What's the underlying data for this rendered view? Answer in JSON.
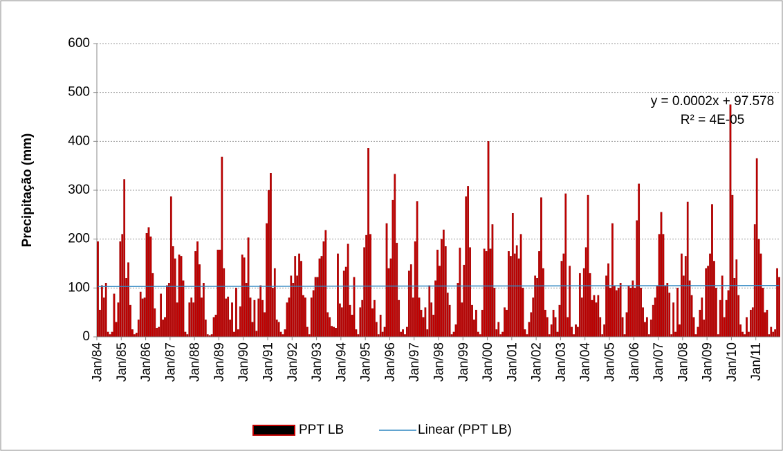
{
  "chart_data": {
    "type": "bar",
    "y_label": "Precipitação (mm)",
    "ylim": [
      0,
      600
    ],
    "yticks": [
      0,
      100,
      200,
      300,
      400,
      500,
      600
    ],
    "grid": true,
    "categories": [
      "Jan/84",
      null,
      null,
      null,
      null,
      null,
      null,
      null,
      null,
      null,
      null,
      null,
      "Jan/85",
      null,
      null,
      null,
      null,
      null,
      null,
      null,
      null,
      null,
      null,
      null,
      "Jan/86",
      null,
      null,
      null,
      null,
      null,
      null,
      null,
      null,
      null,
      null,
      null,
      "Jan/87",
      null,
      null,
      null,
      null,
      null,
      null,
      null,
      null,
      null,
      null,
      null,
      "Jan/88",
      null,
      null,
      null,
      null,
      null,
      null,
      null,
      null,
      null,
      null,
      null,
      "Jan/89",
      null,
      null,
      null,
      null,
      null,
      null,
      null,
      null,
      null,
      null,
      null,
      "Jan/90",
      null,
      null,
      null,
      null,
      null,
      null,
      null,
      null,
      null,
      null,
      null,
      "Jan/91",
      null,
      null,
      null,
      null,
      null,
      null,
      null,
      null,
      null,
      null,
      null,
      "Jan/92",
      null,
      null,
      null,
      null,
      null,
      null,
      null,
      null,
      null,
      null,
      null,
      "Jan/93",
      null,
      null,
      null,
      null,
      null,
      null,
      null,
      null,
      null,
      null,
      null,
      "Jan/94",
      null,
      null,
      null,
      null,
      null,
      null,
      null,
      null,
      null,
      null,
      null,
      "Jan/95",
      null,
      null,
      null,
      null,
      null,
      null,
      null,
      null,
      null,
      null,
      null,
      "Jan/96",
      null,
      null,
      null,
      null,
      null,
      null,
      null,
      null,
      null,
      null,
      null,
      "Jan/97",
      null,
      null,
      null,
      null,
      null,
      null,
      null,
      null,
      null,
      null,
      null,
      "Jan/98",
      null,
      null,
      null,
      null,
      null,
      null,
      null,
      null,
      null,
      null,
      null,
      "Jan/99",
      null,
      null,
      null,
      null,
      null,
      null,
      null,
      null,
      null,
      null,
      null,
      "Jan/00",
      null,
      null,
      null,
      null,
      null,
      null,
      null,
      null,
      null,
      null,
      null,
      "Jan/01",
      null,
      null,
      null,
      null,
      null,
      null,
      null,
      null,
      null,
      null,
      null,
      "Jan/02",
      null,
      null,
      null,
      null,
      null,
      null,
      null,
      null,
      null,
      null,
      null,
      "Jan/03",
      null,
      null,
      null,
      null,
      null,
      null,
      null,
      null,
      null,
      null,
      null,
      "Jan/04",
      null,
      null,
      null,
      null,
      null,
      null,
      null,
      null,
      null,
      null,
      null,
      "Jan/05",
      null,
      null,
      null,
      null,
      null,
      null,
      null,
      null,
      null,
      null,
      null,
      "Jan/06",
      null,
      null,
      null,
      null,
      null,
      null,
      null,
      null,
      null,
      null,
      null,
      "Jan/07",
      null,
      null,
      null,
      null,
      null,
      null,
      null,
      null,
      null,
      null,
      null,
      "Jan/08",
      null,
      null,
      null,
      null,
      null,
      null,
      null,
      null,
      null,
      null,
      null,
      "Jan/09",
      null,
      null,
      null,
      null,
      null,
      null,
      null,
      null,
      null,
      null,
      null,
      "Jan/10",
      null,
      null,
      null,
      null,
      null,
      null,
      null,
      null,
      null,
      null,
      null,
      "Jan/11",
      null,
      null,
      null,
      null,
      null,
      null,
      null,
      null,
      null,
      null,
      null
    ],
    "series": [
      {
        "name": "PPT LB",
        "color": "#c00000",
        "values": [
          195,
          55,
          105,
          80,
          110,
          10,
          5,
          10,
          88,
          30,
          70,
          195,
          210,
          322,
          120,
          152,
          65,
          15,
          5,
          8,
          35,
          92,
          78,
          80,
          212,
          224,
          205,
          130,
          58,
          18,
          20,
          88,
          35,
          40,
          105,
          110,
          287,
          185,
          160,
          70,
          168,
          165,
          115,
          10,
          5,
          70,
          80,
          70,
          175,
          195,
          148,
          80,
          110,
          35,
          5,
          3,
          5,
          40,
          45,
          178,
          178,
          368,
          140,
          78,
          82,
          35,
          70,
          10,
          100,
          15,
          62,
          168,
          162,
          110,
          203,
          80,
          30,
          75,
          12,
          78,
          105,
          75,
          50,
          232,
          300,
          335,
          100,
          140,
          35,
          30,
          10,
          5,
          15,
          70,
          80,
          125,
          110,
          165,
          125,
          170,
          155,
          85,
          80,
          20,
          5,
          80,
          95,
          122,
          122,
          160,
          165,
          195,
          218,
          50,
          40,
          22,
          20,
          18,
          170,
          68,
          60,
          135,
          143,
          190,
          65,
          45,
          122,
          15,
          5,
          60,
          75,
          183,
          208,
          386,
          210,
          58,
          75,
          30,
          5,
          45,
          10,
          20,
          232,
          140,
          160,
          280,
          333,
          192,
          75,
          10,
          15,
          5,
          20,
          135,
          148,
          80,
          195,
          277,
          80,
          55,
          40,
          60,
          15,
          105,
          70,
          45,
          115,
          178,
          145,
          200,
          219,
          185,
          90,
          65,
          5,
          10,
          25,
          110,
          182,
          70,
          147,
          287,
          308,
          183,
          65,
          35,
          55,
          10,
          5,
          55,
          180,
          175,
          400,
          180,
          230,
          100,
          15,
          30,
          5,
          10,
          60,
          55,
          175,
          165,
          253,
          170,
          187,
          160,
          210,
          100,
          15,
          5,
          30,
          50,
          80,
          125,
          120,
          175,
          285,
          140,
          55,
          40,
          5,
          25,
          55,
          40,
          10,
          65,
          155,
          170,
          293,
          40,
          145,
          20,
          5,
          25,
          20,
          130,
          80,
          140,
          183,
          290,
          130,
          75,
          85,
          70,
          85,
          40,
          5,
          25,
          125,
          150,
          100,
          232,
          105,
          95,
          100,
          110,
          40,
          5,
          50,
          105,
          100,
          115,
          100,
          238,
          313,
          100,
          60,
          30,
          40,
          5,
          35,
          65,
          80,
          105,
          210,
          255,
          210,
          105,
          110,
          90,
          5,
          70,
          10,
          100,
          25,
          170,
          125,
          165,
          276,
          115,
          85,
          40,
          5,
          20,
          55,
          80,
          35,
          140,
          145,
          170,
          271,
          155,
          100,
          5,
          75,
          125,
          40,
          75,
          95,
          475,
          290,
          120,
          158,
          85,
          25,
          10,
          5,
          40,
          10,
          55,
          60,
          230,
          365,
          200,
          170,
          100,
          50,
          55,
          5,
          20,
          10,
          15,
          140,
          122
        ]
      }
    ],
    "trendline": {
      "name": "Linear (PPT LB)",
      "color": "#2e86c1",
      "values": [
        103,
        105
      ]
    },
    "annotations": [
      "y = 0.0002x + 97.578",
      "R² = 4E-05"
    ]
  }
}
